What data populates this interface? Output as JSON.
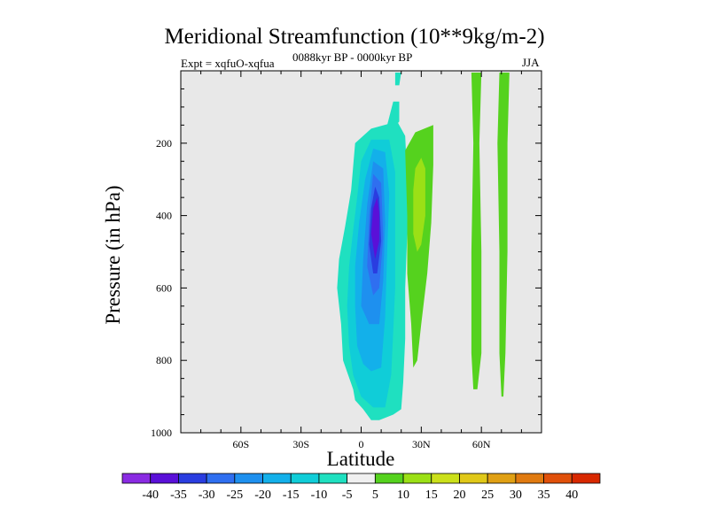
{
  "chart_data": {
    "type": "contour",
    "title": "Meridional Streamfunction (10**9kg/m-2)",
    "left_string": "Expt = xqfuO-xqfua",
    "center_string": "0088kyr BP - 0000kyr BP",
    "right_string": "JJA",
    "xlabel": "Latitude",
    "ylabel": "Pressure (in hPa)",
    "xlim": [
      -90,
      90
    ],
    "ylim": [
      1000,
      0
    ],
    "x_ticks": [
      {
        "value": -60,
        "label": "60S"
      },
      {
        "value": -30,
        "label": "30S"
      },
      {
        "value": 0,
        "label": "0"
      },
      {
        "value": 30,
        "label": "30N"
      },
      {
        "value": 60,
        "label": "60N"
      }
    ],
    "y_ticks": [
      {
        "value": 200,
        "label": "200"
      },
      {
        "value": 400,
        "label": "400"
      },
      {
        "value": 600,
        "label": "600"
      },
      {
        "value": 800,
        "label": "800"
      },
      {
        "value": 1000,
        "label": "1000"
      }
    ],
    "missing_color": "#e8e8e8",
    "colorbar": {
      "levels": [
        "-40",
        "-35",
        "-30",
        "-25",
        "-20",
        "-15",
        "-10",
        "-5",
        "5",
        "10",
        "15",
        "20",
        "25",
        "30",
        "35",
        "40"
      ],
      "colors": [
        "#8a2be2",
        "#5a10d8",
        "#2a3de0",
        "#2f6ff0",
        "#1e90ef",
        "#13b0ea",
        "#10cdd8",
        "#1fe0c0",
        "#f0f0f0",
        "#55d21e",
        "#9be016",
        "#cbe01a",
        "#e0c818",
        "#e0a014",
        "#e07a10",
        "#e0500a",
        "#d82800"
      ]
    },
    "regions": [
      {
        "name": "neg-5",
        "fill": "#1fe0c0",
        "points": [
          [
            -4,
            880
          ],
          [
            -9,
            800
          ],
          [
            -10,
            700
          ],
          [
            -12,
            600
          ],
          [
            -11,
            520
          ],
          [
            -8,
            430
          ],
          [
            -5,
            330
          ],
          [
            -3,
            200
          ],
          [
            5,
            160
          ],
          [
            18,
            140
          ],
          [
            22,
            180
          ],
          [
            23,
            300
          ],
          [
            23,
            450
          ],
          [
            22,
            600
          ],
          [
            22,
            740
          ],
          [
            21,
            860
          ],
          [
            20,
            935
          ],
          [
            16,
            950
          ],
          [
            9,
            965
          ],
          [
            5,
            965
          ],
          [
            1,
            935
          ],
          [
            -3,
            910
          ]
        ]
      },
      {
        "name": "neg-5-upper",
        "fill": "#1fe0c0",
        "points": [
          [
            16,
            85
          ],
          [
            19,
            85
          ],
          [
            19,
            140
          ],
          [
            16,
            160
          ],
          [
            13,
            150
          ]
        ]
      },
      {
        "name": "neg-5-top",
        "fill": "#1fe0c0",
        "points": [
          [
            17,
            5
          ],
          [
            20,
            5
          ],
          [
            19,
            40
          ],
          [
            17,
            40
          ]
        ]
      },
      {
        "name": "neg-10",
        "fill": "#10cdd8",
        "points": [
          [
            -4,
            840
          ],
          [
            -6,
            760
          ],
          [
            -7,
            650
          ],
          [
            -6,
            540
          ],
          [
            -4,
            440
          ],
          [
            -2,
            350
          ],
          [
            0,
            250
          ],
          [
            5,
            190
          ],
          [
            14,
            190
          ],
          [
            17,
            280
          ],
          [
            17,
            450
          ],
          [
            17,
            600
          ],
          [
            16,
            720
          ],
          [
            15,
            840
          ],
          [
            12,
            930
          ],
          [
            6,
            930
          ],
          [
            0,
            900
          ]
        ]
      },
      {
        "name": "neg-15",
        "fill": "#13b0ea",
        "points": [
          [
            -2,
            760
          ],
          [
            -3,
            650
          ],
          [
            -3,
            540
          ],
          [
            -1,
            420
          ],
          [
            2,
            300
          ],
          [
            6,
            215
          ],
          [
            12,
            225
          ],
          [
            14,
            340
          ],
          [
            13,
            500
          ],
          [
            12,
            680
          ],
          [
            10,
            820
          ],
          [
            5,
            830
          ],
          [
            1,
            810
          ]
        ]
      },
      {
        "name": "neg-20",
        "fill": "#1e90ef",
        "points": [
          [
            0,
            650
          ],
          [
            1,
            520
          ],
          [
            3,
            370
          ],
          [
            6,
            250
          ],
          [
            11,
            270
          ],
          [
            12,
            420
          ],
          [
            11,
            580
          ],
          [
            9,
            700
          ],
          [
            4,
            700
          ]
        ]
      },
      {
        "name": "neg-25",
        "fill": "#2f6ff0",
        "points": [
          [
            3,
            540
          ],
          [
            4,
            400
          ],
          [
            6,
            285
          ],
          [
            10,
            310
          ],
          [
            11,
            460
          ],
          [
            9,
            600
          ],
          [
            6,
            620
          ]
        ]
      },
      {
        "name": "neg-30",
        "fill": "#2a3de0",
        "points": [
          [
            4,
            480
          ],
          [
            5,
            380
          ],
          [
            7,
            320
          ],
          [
            9,
            350
          ],
          [
            10,
            470
          ],
          [
            8,
            560
          ],
          [
            6,
            560
          ]
        ]
      },
      {
        "name": "neg-35",
        "fill": "#5a10d8",
        "points": [
          [
            5,
            450
          ],
          [
            6,
            380
          ],
          [
            8,
            350
          ],
          [
            9,
            390
          ],
          [
            9,
            470
          ],
          [
            7,
            520
          ]
        ]
      },
      {
        "name": "pos-5-west",
        "fill": "#55d21e",
        "points": [
          [
            22,
            220
          ],
          [
            27,
            170
          ],
          [
            36,
            150
          ],
          [
            36,
            260
          ],
          [
            35,
            420
          ],
          [
            33,
            560
          ],
          [
            30,
            700
          ],
          [
            28,
            800
          ],
          [
            26,
            820
          ],
          [
            25,
            700
          ],
          [
            23,
            560
          ],
          [
            23,
            400
          ]
        ]
      },
      {
        "name": "pos-10-west",
        "fill": "#9be016",
        "points": [
          [
            26,
            330
          ],
          [
            27,
            270
          ],
          [
            30,
            240
          ],
          [
            32,
            270
          ],
          [
            32,
            400
          ],
          [
            30,
            480
          ],
          [
            28,
            500
          ],
          [
            26,
            450
          ]
        ]
      },
      {
        "name": "pos-5-mid",
        "fill": "#55d21e",
        "points": [
          [
            55,
            5
          ],
          [
            60,
            5
          ],
          [
            59,
            200
          ],
          [
            60,
            500
          ],
          [
            60,
            780
          ],
          [
            58,
            880
          ],
          [
            56,
            880
          ],
          [
            55,
            780
          ],
          [
            55,
            500
          ],
          [
            56,
            200
          ]
        ]
      },
      {
        "name": "pos-5-east",
        "fill": "#55d21e",
        "points": [
          [
            69,
            5
          ],
          [
            74,
            5
          ],
          [
            73,
            200
          ],
          [
            73,
            500
          ],
          [
            72,
            780
          ],
          [
            71,
            900
          ],
          [
            70,
            900
          ],
          [
            69,
            780
          ],
          [
            69,
            500
          ],
          [
            68,
            200
          ]
        ]
      }
    ]
  }
}
